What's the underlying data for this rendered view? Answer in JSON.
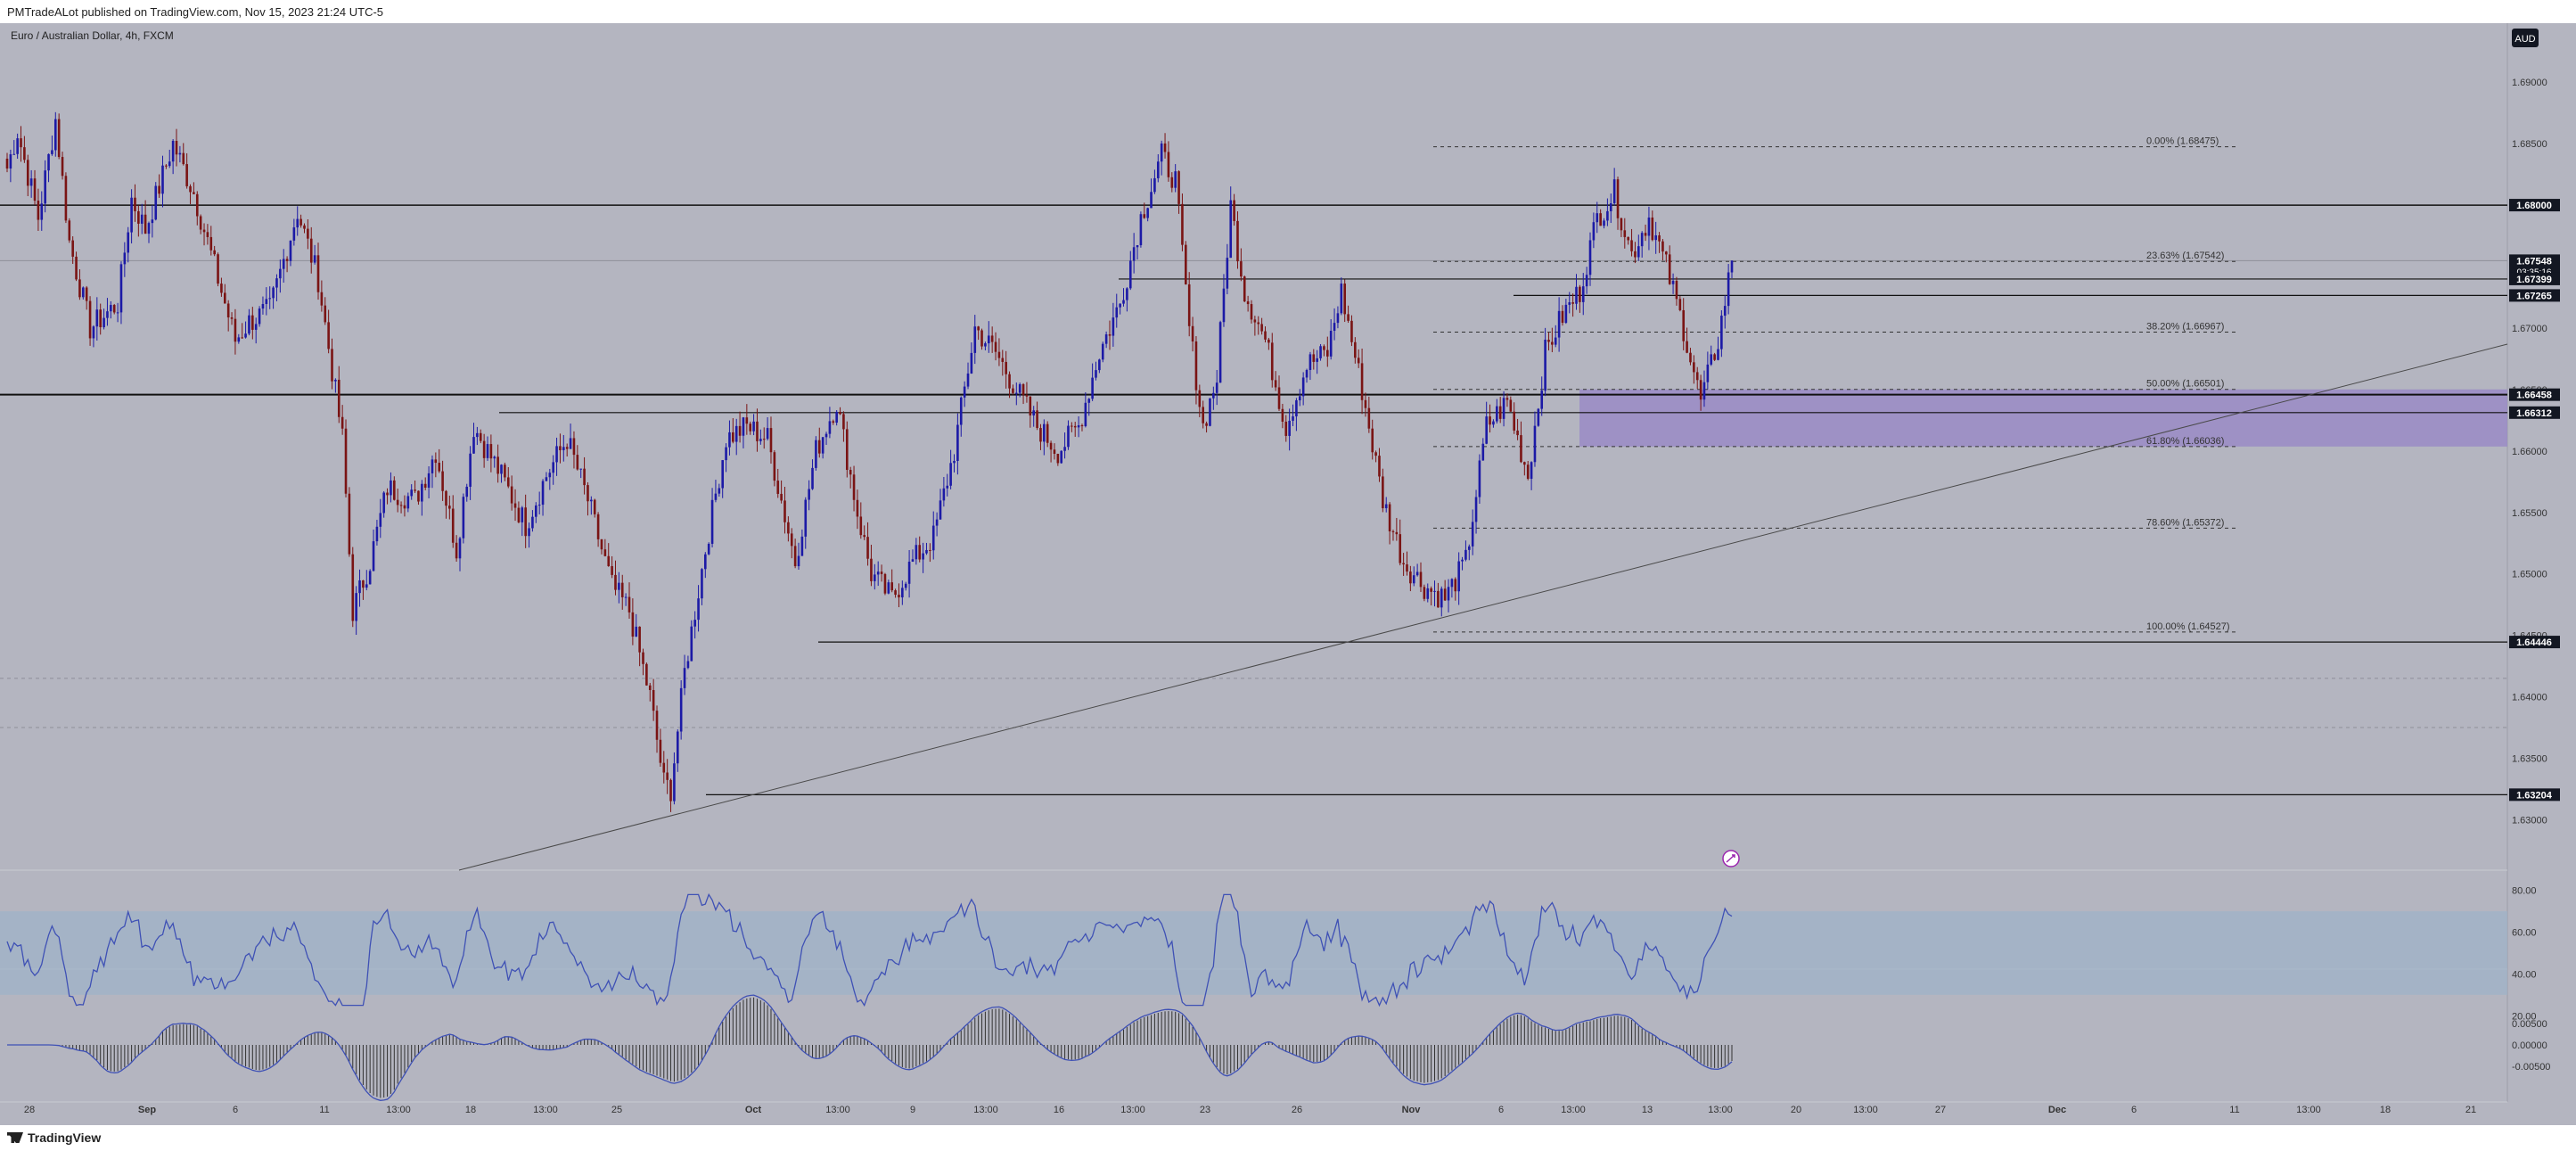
{
  "header": {
    "publish_line": "PMTradeALot published on TradingView.com, Nov 15, 2023 21:24 UTC-5"
  },
  "footer": {
    "brand": "TradingView"
  },
  "chart_data": {
    "type": "candlestick",
    "title": "Euro / Australian Dollar, 4h, FXCM",
    "currency": "AUD",
    "ylim": [
      1.6259,
      1.6948
    ],
    "yticks": [
      "1.69000",
      "1.68500",
      "1.68000",
      "1.67500",
      "1.67000",
      "1.66500",
      "1.66000",
      "1.65500",
      "1.65000",
      "1.64500",
      "1.64000",
      "1.63500",
      "1.63000"
    ],
    "xlabels": [
      "28",
      "Sep",
      "6",
      "11",
      "13:00",
      "18",
      "13:00",
      "25",
      "Oct",
      "13:00",
      "9",
      "13:00",
      "16",
      "13:00",
      "23",
      "26",
      "Nov",
      "6",
      "13:00",
      "13",
      "13:00",
      "20",
      "13:00",
      "27",
      "Dec",
      "6",
      "11",
      "13:00",
      "18",
      "21"
    ],
    "price_badges": [
      {
        "label": "1.68000",
        "price": 1.68,
        "style": "dark"
      },
      {
        "label": "1.67548",
        "price": 1.67548,
        "style": "dark",
        "countdown": "03:35:16"
      },
      {
        "label": "1.67399",
        "price": 1.67399,
        "style": "dark"
      },
      {
        "label": "1.67265",
        "price": 1.67265,
        "style": "dark"
      },
      {
        "label": "1.66458",
        "price": 1.66458,
        "style": "dark"
      },
      {
        "label": "1.66312",
        "price": 1.66312,
        "style": "dark"
      },
      {
        "label": "1.64446",
        "price": 1.64446,
        "style": "dark"
      },
      {
        "label": "1.63204",
        "price": 1.63204,
        "style": "dark"
      }
    ],
    "fibonacci": [
      {
        "label": "0.00% (1.68475)",
        "price": 1.68475
      },
      {
        "label": "23.63% (1.67542)",
        "price": 1.67542
      },
      {
        "label": "38.20% (1.66967)",
        "price": 1.66967
      },
      {
        "label": "50.00% (1.66501)",
        "price": 1.66501
      },
      {
        "label": "61.80% (1.66036)",
        "price": 1.66036
      },
      {
        "label": "78.60% (1.65372)",
        "price": 1.65372
      },
      {
        "label": "100.00% (1.64527)",
        "price": 1.64527
      }
    ],
    "zone": {
      "top": 1.66501,
      "bottom": 1.66036
    },
    "rsi": {
      "yticks": [
        "80.00",
        "60.00",
        "40.00",
        "20.00"
      ],
      "band": [
        30,
        70
      ]
    },
    "macd": {
      "yticks": [
        "0.00500",
        "0.00000",
        "-0.00500"
      ]
    },
    "price_anchors": [
      [
        0,
        1.683
      ],
      [
        3,
        1.686
      ],
      [
        9,
        1.679
      ],
      [
        14,
        1.687
      ],
      [
        18,
        1.677
      ],
      [
        24,
        1.67
      ],
      [
        32,
        1.672
      ],
      [
        36,
        1.6805
      ],
      [
        40,
        1.678
      ],
      [
        48,
        1.685
      ],
      [
        54,
        1.681
      ],
      [
        60,
        1.675
      ],
      [
        66,
        1.669
      ],
      [
        70,
        1.6705
      ],
      [
        76,
        1.6715
      ],
      [
        84,
        1.6795
      ],
      [
        90,
        1.674
      ],
      [
        97,
        1.661
      ],
      [
        100,
        1.647
      ],
      [
        105,
        1.651
      ],
      [
        110,
        1.657
      ],
      [
        118,
        1.656
      ],
      [
        124,
        1.66
      ],
      [
        130,
        1.652
      ],
      [
        135,
        1.662
      ],
      [
        142,
        1.6585
      ],
      [
        150,
        1.654
      ],
      [
        156,
        1.658
      ],
      [
        162,
        1.661
      ],
      [
        168,
        1.656
      ],
      [
        175,
        1.649
      ],
      [
        180,
        1.647
      ],
      [
        186,
        1.64
      ],
      [
        190,
        1.633
      ],
      [
        192,
        1.6325
      ],
      [
        196,
        1.642
      ],
      [
        202,
        1.652
      ],
      [
        208,
        1.661
      ],
      [
        214,
        1.662
      ],
      [
        220,
        1.661
      ],
      [
        228,
        1.651
      ],
      [
        234,
        1.66
      ],
      [
        240,
        1.664
      ],
      [
        246,
        1.655
      ],
      [
        250,
        1.65
      ],
      [
        256,
        1.648
      ],
      [
        262,
        1.651
      ],
      [
        268,
        1.653
      ],
      [
        274,
        1.66
      ],
      [
        280,
        1.67
      ],
      [
        286,
        1.668
      ],
      [
        292,
        1.665
      ],
      [
        298,
        1.662
      ],
      [
        304,
        1.66
      ],
      [
        310,
        1.662
      ],
      [
        316,
        1.668
      ],
      [
        322,
        1.672
      ],
      [
        328,
        1.679
      ],
      [
        334,
        1.684
      ],
      [
        338,
        1.682
      ],
      [
        342,
        1.67
      ],
      [
        346,
        1.662
      ],
      [
        350,
        1.666
      ],
      [
        354,
        1.68
      ],
      [
        358,
        1.673
      ],
      [
        364,
        1.669
      ],
      [
        370,
        1.662
      ],
      [
        376,
        1.667
      ],
      [
        382,
        1.668
      ],
      [
        386,
        1.673
      ],
      [
        392,
        1.665
      ],
      [
        398,
        1.656
      ],
      [
        404,
        1.651
      ],
      [
        410,
        1.649
      ],
      [
        416,
        1.648
      ],
      [
        422,
        1.651
      ],
      [
        428,
        1.662
      ],
      [
        434,
        1.664
      ],
      [
        440,
        1.658
      ],
      [
        445,
        1.668
      ],
      [
        450,
        1.671
      ],
      [
        455,
        1.673
      ],
      [
        460,
        1.679
      ],
      [
        465,
        1.681
      ],
      [
        470,
        1.676
      ],
      [
        475,
        1.679
      ],
      [
        480,
        1.675
      ],
      [
        485,
        1.67
      ],
      [
        490,
        1.664
      ],
      [
        495,
        1.669
      ],
      [
        499,
        1.6755
      ]
    ]
  }
}
